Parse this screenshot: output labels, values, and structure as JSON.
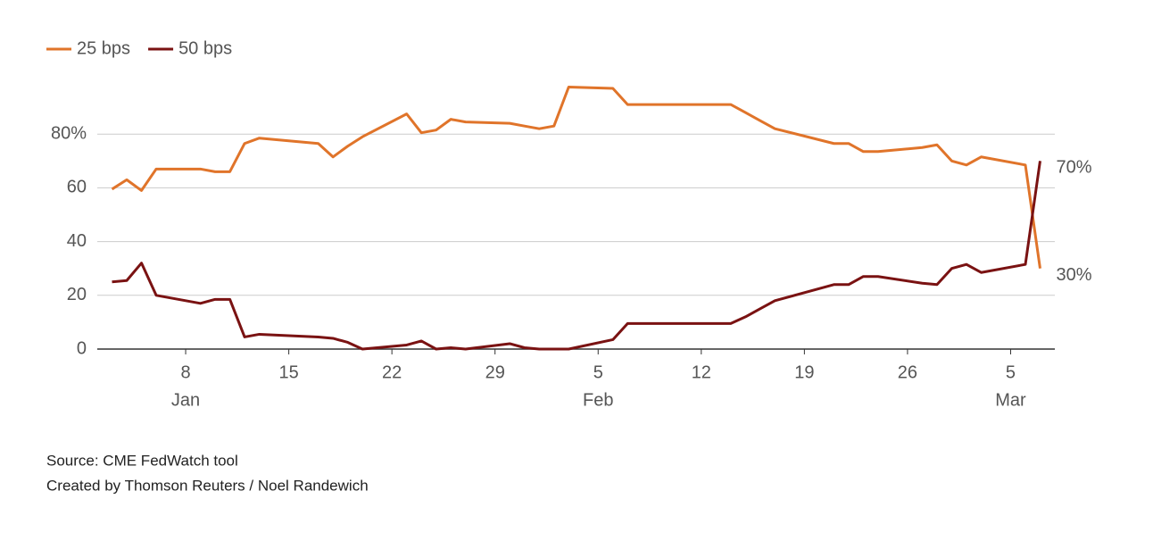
{
  "chart_data": {
    "type": "line",
    "x": [
      "Jan 3",
      "Jan 4",
      "Jan 5",
      "Jan 6",
      "Jan 9",
      "Jan 10",
      "Jan 11",
      "Jan 12",
      "Jan 13",
      "Jan 17",
      "Jan 18",
      "Jan 19",
      "Jan 20",
      "Jan 23",
      "Jan 24",
      "Jan 25",
      "Jan 26",
      "Jan 27",
      "Jan 30",
      "Jan 31",
      "Feb 1",
      "Feb 2",
      "Feb 3",
      "Feb 6",
      "Feb 7",
      "Feb 8",
      "Feb 9",
      "Feb 10",
      "Feb 13",
      "Feb 14",
      "Feb 15",
      "Feb 16",
      "Feb 17",
      "Feb 21",
      "Feb 22",
      "Feb 23",
      "Feb 24",
      "Feb 27",
      "Feb 28",
      "Mar 1",
      "Mar 2",
      "Mar 3",
      "Mar 6",
      "Mar 7"
    ],
    "series": [
      {
        "name": "25 bps",
        "color": "#e0742a",
        "values": [
          59.5,
          63,
          59,
          67,
          67,
          66,
          66,
          76.5,
          78.5,
          76.5,
          71.5,
          75.5,
          79,
          87.5,
          80.5,
          81.5,
          85.5,
          84.5,
          84,
          83,
          82,
          83,
          97.5,
          97,
          91,
          91,
          91,
          91,
          91,
          91,
          88,
          85,
          82,
          76.5,
          76.5,
          73.5,
          73.5,
          75,
          76,
          70,
          68.5,
          71.5,
          68.5,
          30
        ]
      },
      {
        "name": "50 bps",
        "color": "#7a1212",
        "values": [
          25,
          25.5,
          32,
          20,
          17,
          18.5,
          18.5,
          4.5,
          5.5,
          4.5,
          4,
          2.5,
          0,
          1.5,
          3,
          0,
          0.5,
          0,
          2,
          0.5,
          0,
          0,
          0,
          3.5,
          9.5,
          9.5,
          9.5,
          9.5,
          9.5,
          9.5,
          12,
          15,
          18,
          24,
          24,
          27,
          27,
          24.5,
          24,
          30,
          31.5,
          28.5,
          31.5,
          70
        ]
      }
    ],
    "xlim": [
      "Jan 2",
      "Mar 8"
    ],
    "xticks": [
      {
        "value": "Jan 8",
        "label": "8"
      },
      {
        "value": "Jan 15",
        "label": "15"
      },
      {
        "value": "Jan 22",
        "label": "22"
      },
      {
        "value": "Jan 29",
        "label": "29"
      },
      {
        "value": "Feb 5",
        "label": "5"
      },
      {
        "value": "Feb 12",
        "label": "12"
      },
      {
        "value": "Feb 19",
        "label": "19"
      },
      {
        "value": "Feb 26",
        "label": "26"
      },
      {
        "value": "Mar 5",
        "label": "5"
      }
    ],
    "xtick_months": [
      {
        "value": "Jan 8",
        "label": "Jan"
      },
      {
        "value": "Feb 5",
        "label": "Feb"
      },
      {
        "value": "Mar 5",
        "label": "Mar"
      }
    ],
    "ylim": [
      0,
      100
    ],
    "yticks": [
      0,
      20,
      40,
      60,
      {
        "value": 80,
        "label": "80%"
      }
    ],
    "grid": true,
    "legend": "top-left",
    "annotations": [
      {
        "text": "70%",
        "x": "Mar 7",
        "y": 70
      },
      {
        "text": "30%",
        "x": "Mar 7",
        "y": 30
      }
    ],
    "source": "Source: CME FedWatch tool",
    "credit": "Created by Thomson Reuters / Noel Randewich"
  }
}
